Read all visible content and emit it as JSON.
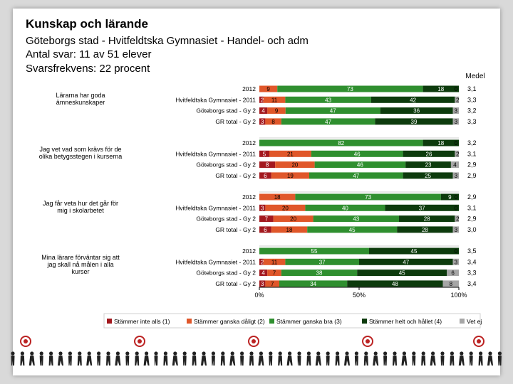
{
  "header": {
    "title": "Kunskap och lärande",
    "subtitle": "Göteborgs stad - Hvitfeldtska Gymnasiet - Handel- och adm",
    "responses": "Antal svar: 11 av 51 elever",
    "response_rate": "Svarsfrekvens: 22 procent"
  },
  "chart_data": {
    "type": "bar",
    "stacked": "percent",
    "mean_header": "Medel",
    "x_ticks": [
      "0%",
      "50%",
      "100%"
    ],
    "colors": {
      "Stämmer inte alls (1)": "#a3181e",
      "Stämmer ganska dåligt (2)": "#e0572a",
      "Stämmer ganska bra (3)": "#2f8f2f",
      "Stämmer helt och hållet (4)": "#0d3b0d",
      "Vet ej": "#a6a6a6"
    },
    "legend": [
      "Stämmer inte alls (1)",
      "Stämmer ganska dåligt (2)",
      "Stämmer ganska bra (3)",
      "Stämmer helt och hållet (4)",
      "Vet ej"
    ],
    "groups": [
      {
        "question": "Lärarna har goda ämneskunskaper",
        "rows": [
          {
            "label": "2012",
            "values": [
              0,
              9,
              73,
              18,
              0
            ],
            "mean": "3,1"
          },
          {
            "label": "Hvitfeldtska Gymnasiet - 2011",
            "values": [
              2,
              11,
              43,
              42,
              2
            ],
            "mean": "3,3"
          },
          {
            "label": "Göteborgs stad - Gy 2",
            "values": [
              4,
              9,
              47,
              36,
              3
            ],
            "mean": "3,2"
          },
          {
            "label": "GR total - Gy 2",
            "values": [
              3,
              8,
              47,
              39,
              3
            ],
            "mean": "3,3"
          }
        ]
      },
      {
        "question": "Jag vet vad som krävs för de olika betygsstegen i kurserna",
        "rows": [
          {
            "label": "2012",
            "values": [
              0,
              0,
              82,
              18,
              0
            ],
            "mean": "3,2"
          },
          {
            "label": "Hvitfeldtska Gymnasiet - 2011",
            "values": [
              5,
              21,
              46,
              26,
              2
            ],
            "mean": "3,1"
          },
          {
            "label": "Göteborgs stad - Gy 2",
            "values": [
              8,
              20,
              46,
              23,
              4
            ],
            "mean": "2,9"
          },
          {
            "label": "GR total - Gy 2",
            "values": [
              6,
              19,
              47,
              25,
              3
            ],
            "mean": "2,9"
          }
        ]
      },
      {
        "question": "Jag får veta hur det går för mig i skolarbetet",
        "rows": [
          {
            "label": "2012",
            "values": [
              0,
              18,
              73,
              9,
              0
            ],
            "mean": "2,9"
          },
          {
            "label": "Hvitfeldtska Gymnasiet - 2011",
            "values": [
              3,
              20,
              40,
              37,
              0
            ],
            "mean": "3,1"
          },
          {
            "label": "Göteborgs stad - Gy 2",
            "values": [
              7,
              20,
              43,
              28,
              2
            ],
            "mean": "2,9"
          },
          {
            "label": "GR total - Gy 2",
            "values": [
              6,
              18,
              45,
              28,
              3
            ],
            "mean": "3,0"
          }
        ]
      },
      {
        "question": "Mina lärare förväntar sig att jag skall nå målen i alla kurser",
        "rows": [
          {
            "label": "2012",
            "values": [
              0,
              0,
              55,
              45,
              0
            ],
            "mean": "3,5"
          },
          {
            "label": "Hvitfeldtska Gymnasiet - 2011",
            "values": [
              2,
              11,
              37,
              47,
              3
            ],
            "mean": "3,4"
          },
          {
            "label": "Göteborgs stad - Gy 2",
            "values": [
              4,
              7,
              38,
              45,
              6
            ],
            "mean": "3,3"
          },
          {
            "label": "GR total - Gy 2",
            "values": [
              3,
              7,
              34,
              48,
              8
            ],
            "mean": "3,4"
          }
        ]
      }
    ]
  }
}
